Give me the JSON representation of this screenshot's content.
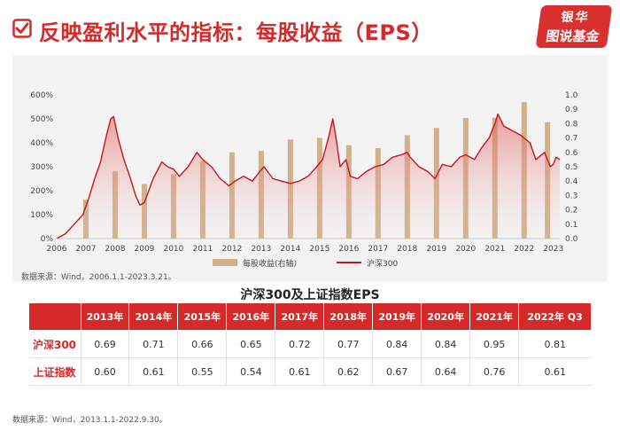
{
  "header": {
    "title": "反映盈利水平的指标：每股收益（EPS）",
    "logo_top": "银华",
    "logo_bottom": "图说基金",
    "accent_color": "#d42a2a"
  },
  "chart_data": {
    "type": "bar+line",
    "x_ticks": [
      "2006",
      "2007",
      "2008",
      "2009",
      "2010",
      "2011",
      "2012",
      "2013",
      "2014",
      "2015",
      "2016",
      "2017",
      "2018",
      "2019",
      "2020",
      "2021",
      "2022",
      "2023"
    ],
    "ylabel_left_ticks": [
      "0%",
      "100%",
      "200%",
      "300%",
      "400%",
      "500%",
      "600%"
    ],
    "ylabel_right_ticks": [
      "0.0",
      "0.1",
      "0.2",
      "0.3",
      "0.4",
      "0.5",
      "0.6",
      "0.7",
      "0.8",
      "0.9",
      "1.0"
    ],
    "ylim_left": [
      0,
      600
    ],
    "ylim_right": [
      0,
      1.0
    ],
    "legend": [
      "每股收益(右轴)",
      "沪深300"
    ],
    "legend_position": "bottom",
    "series": [
      {
        "name": "每股收益(右轴)",
        "type": "bar",
        "axis": "right",
        "color": "#d2b18a",
        "x": [
          2007.0,
          2008.0,
          2009.0,
          2010.0,
          2011.0,
          2012.0,
          2013.0,
          2014.0,
          2015.0,
          2016.0,
          2017.0,
          2018.0,
          2019.0,
          2020.0,
          2021.0,
          2022.0,
          2022.8
        ],
        "values": [
          0.27,
          0.47,
          0.38,
          0.45,
          0.54,
          0.6,
          0.61,
          0.69,
          0.7,
          0.65,
          0.63,
          0.72,
          0.77,
          0.84,
          0.84,
          0.95,
          0.81
        ]
      },
      {
        "name": "沪深300",
        "type": "line",
        "axis": "left",
        "color": "#c8161d",
        "x": [
          2006.0,
          2006.3,
          2006.6,
          2006.9,
          2007.1,
          2007.3,
          2007.5,
          2007.7,
          2007.85,
          2007.95,
          2008.1,
          2008.3,
          2008.5,
          2008.7,
          2008.85,
          2009.0,
          2009.3,
          2009.6,
          2009.8,
          2010.0,
          2010.2,
          2010.5,
          2010.8,
          2011.0,
          2011.3,
          2011.6,
          2011.9,
          2012.1,
          2012.4,
          2012.7,
          2012.95,
          2013.1,
          2013.4,
          2013.7,
          2014.0,
          2014.3,
          2014.6,
          2014.9,
          2015.1,
          2015.3,
          2015.45,
          2015.55,
          2015.7,
          2015.9,
          2016.05,
          2016.3,
          2016.6,
          2016.9,
          2017.2,
          2017.5,
          2017.8,
          2018.0,
          2018.1,
          2018.4,
          2018.7,
          2018.95,
          2019.2,
          2019.5,
          2019.8,
          2020.0,
          2020.3,
          2020.55,
          2020.8,
          2021.0,
          2021.1,
          2021.3,
          2021.6,
          2021.9,
          2022.2,
          2022.4,
          2022.7,
          2022.9,
          2023.0,
          2023.1,
          2023.22
        ],
        "values": [
          0,
          20,
          60,
          100,
          170,
          250,
          320,
          430,
          500,
          510,
          420,
          330,
          260,
          180,
          140,
          150,
          250,
          320,
          300,
          290,
          260,
          300,
          360,
          330,
          300,
          250,
          220,
          240,
          260,
          240,
          280,
          300,
          250,
          240,
          230,
          240,
          260,
          300,
          330,
          420,
          500,
          430,
          300,
          330,
          260,
          250,
          280,
          300,
          310,
          340,
          350,
          360,
          340,
          300,
          280,
          250,
          310,
          300,
          340,
          350,
          330,
          380,
          420,
          480,
          520,
          470,
          450,
          430,
          400,
          330,
          360,
          300,
          310,
          340,
          330
        ]
      }
    ]
  },
  "chart_source": "数据来源：Wind，2006.1.1-2023.3.21。",
  "table": {
    "title": "沪深300及上证指数EPS",
    "headers": [
      "2013年",
      "2014年",
      "2015年",
      "2016年",
      "2017年",
      "2018年",
      "2019年",
      "2020年",
      "2021年",
      "2022年 Q3"
    ],
    "rows": [
      {
        "name": "沪深300",
        "values": [
          "0.69",
          "0.71",
          "0.66",
          "0.65",
          "0.72",
          "0.77",
          "0.84",
          "0.84",
          "0.95",
          "0.81"
        ]
      },
      {
        "name": "上证指数",
        "values": [
          "0.60",
          "0.61",
          "0.55",
          "0.54",
          "0.61",
          "0.62",
          "0.67",
          "0.64",
          "0.76",
          "0.61"
        ]
      }
    ]
  },
  "table_source": "数据来源：Wind，2013.1.1-2022.9.30。"
}
